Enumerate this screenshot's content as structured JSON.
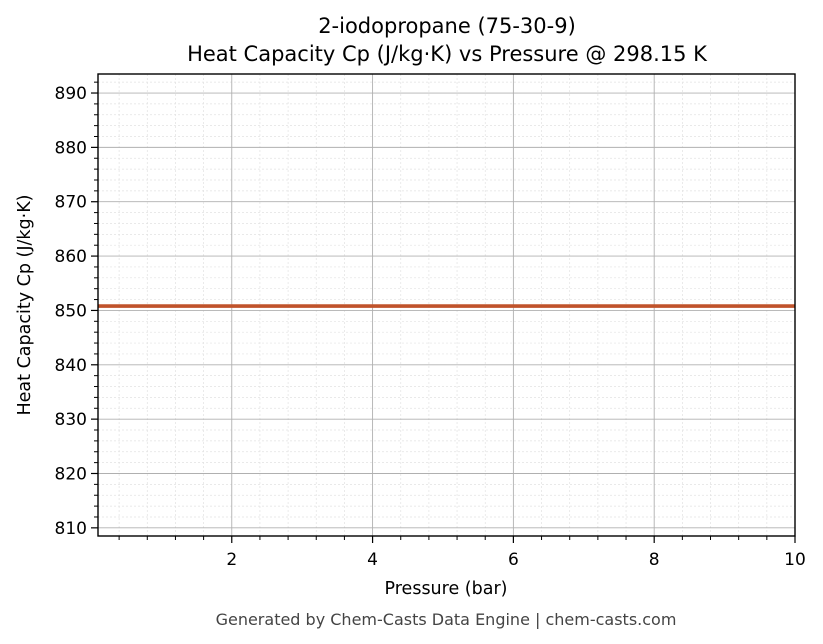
{
  "chart_data": {
    "type": "line",
    "title": "2-iodopropane (75-30-9)",
    "subtitle": "Heat Capacity Cp (J/kg·K) vs Pressure @ 298.15 K",
    "xlabel": "Pressure (bar)",
    "ylabel": "Heat Capacity Cp (J/kg·K)",
    "xlim": [
      0.1,
      10
    ],
    "ylim": [
      808.5,
      893.5
    ],
    "x_ticks": [
      2,
      4,
      6,
      8,
      10
    ],
    "x_tick_labels": [
      "2",
      "4",
      "6",
      "8",
      "10"
    ],
    "y_ticks": [
      810,
      820,
      830,
      840,
      850,
      860,
      870,
      880,
      890
    ],
    "y_tick_labels": [
      "810",
      "820",
      "830",
      "840",
      "850",
      "860",
      "870",
      "880",
      "890"
    ],
    "grid": true,
    "series": [
      {
        "color": "#c0532b",
        "x": [
          0.1,
          1,
          2,
          3,
          4,
          5,
          6,
          7,
          8,
          9,
          10
        ],
        "y": [
          850.8,
          850.8,
          850.8,
          850.8,
          850.8,
          850.8,
          850.8,
          850.8,
          850.8,
          850.8,
          850.8
        ]
      }
    ]
  },
  "footer": "Generated by Chem-Casts Data Engine | chem-casts.com"
}
